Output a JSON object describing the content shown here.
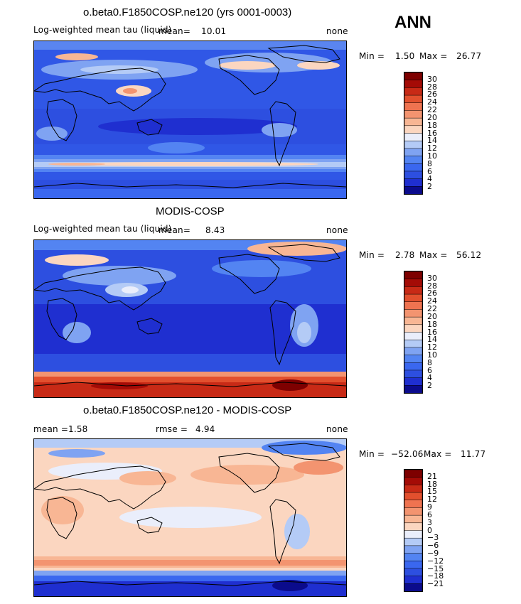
{
  "season": "ANN",
  "colors": {
    "palette_abs": [
      "#0b0b8c",
      "#1f2fd0",
      "#2d4fe0",
      "#3a67ef",
      "#5384f2",
      "#7fa3f2",
      "#b4cbf6",
      "#eaeefb",
      "#fbd6c0",
      "#f8b694",
      "#f39470",
      "#ef7350",
      "#e2502e",
      "#c82a16",
      "#a40b06",
      "#7e0000"
    ],
    "palette_diff": [
      "#0b0b8c",
      "#1f2fd0",
      "#2d4fe0",
      "#3a67ef",
      "#5384f2",
      "#7fa3f2",
      "#b4cbf6",
      "#eaeefb",
      "#fbd6c0",
      "#f8b694",
      "#f39470",
      "#ef7350",
      "#e2502e",
      "#c82a16",
      "#a40b06",
      "#7e0000"
    ],
    "ocean_main": "#3057e6",
    "land_line": "#000000"
  },
  "panels": [
    {
      "title": "o.beta0.F1850COSP.ne120 (yrs 0001-0003)",
      "variable": "Log-weighted mean tau (liquid)",
      "mean_label": "mean=",
      "mean_value": "10.01",
      "units": "none",
      "min_label": "Min =",
      "min_value": "1.50",
      "max_label": "Max =",
      "max_value": "26.77",
      "colorbar_labels": [
        "30",
        "28",
        "26",
        "24",
        "22",
        "20",
        "18",
        "16",
        "14",
        "12",
        "10",
        "8",
        "6",
        "4",
        "2"
      ]
    },
    {
      "title": "MODIS-COSP",
      "variable": "Log-weighted mean tau (liquid)",
      "mean_label": "mean=",
      "mean_value": "8.43",
      "units": "none",
      "min_label": "Min =",
      "min_value": "2.78",
      "max_label": "Max =",
      "max_value": "56.12",
      "colorbar_labels": [
        "30",
        "28",
        "26",
        "24",
        "22",
        "20",
        "18",
        "16",
        "14",
        "12",
        "10",
        "8",
        "6",
        "4",
        "2"
      ]
    },
    {
      "title": "o.beta0.F1850COSP.ne120 - MODIS-COSP",
      "mean_label": "mean =",
      "mean_value": "1.58",
      "rmse_label": "rmse =",
      "rmse_value": "4.94",
      "units": "none",
      "min_label": "Min =",
      "min_value": "−52.06",
      "max_label": "Max =",
      "max_value": "11.77",
      "colorbar_labels": [
        "21",
        "18",
        "15",
        "12",
        "9",
        "6",
        "3",
        "0",
        "−3",
        "−6",
        "−9",
        "−12",
        "−15",
        "−18",
        "−21"
      ]
    }
  ]
}
